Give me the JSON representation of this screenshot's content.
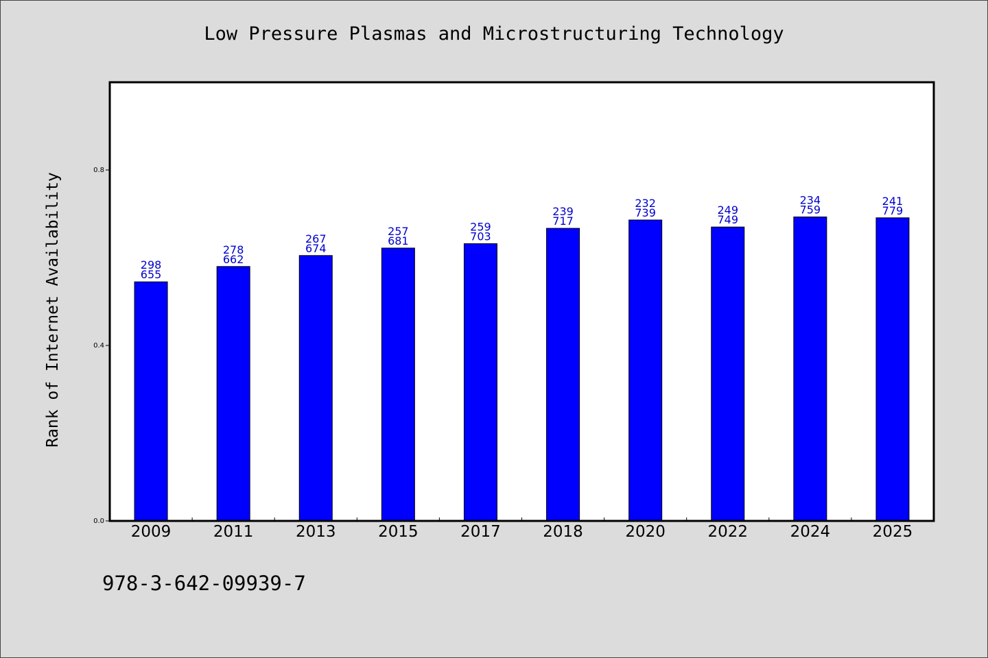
{
  "chart_data": {
    "type": "bar",
    "title": "Low Pressure Plasmas and Microstructuring Technology",
    "xlabel": "",
    "ylabel": "Rank of Internet Availability",
    "categories": [
      "2009",
      "2011",
      "2013",
      "2015",
      "2017",
      "2018",
      "2020",
      "2022",
      "2024",
      "2025"
    ],
    "values": [
      0.545,
      0.58,
      0.605,
      0.622,
      0.632,
      0.667,
      0.686,
      0.67,
      0.693,
      0.691
    ],
    "label_top": [
      "298",
      "278",
      "267",
      "257",
      "259",
      "239",
      "232",
      "249",
      "234",
      "241"
    ],
    "label_bottom": [
      "655",
      "662",
      "674",
      "681",
      "703",
      "717",
      "739",
      "749",
      "759",
      "779"
    ],
    "ylim": [
      0.0,
      1.0
    ],
    "yticks": [
      0.0,
      0.4,
      0.8
    ],
    "ytick_labels": [
      "0.0",
      "0.4",
      "0.8"
    ],
    "grid": false,
    "legend": "none",
    "bar_color": "#0000ff",
    "label_color": "#0000cc"
  },
  "footer": {
    "isbn": "978-3-642-09939-7"
  }
}
